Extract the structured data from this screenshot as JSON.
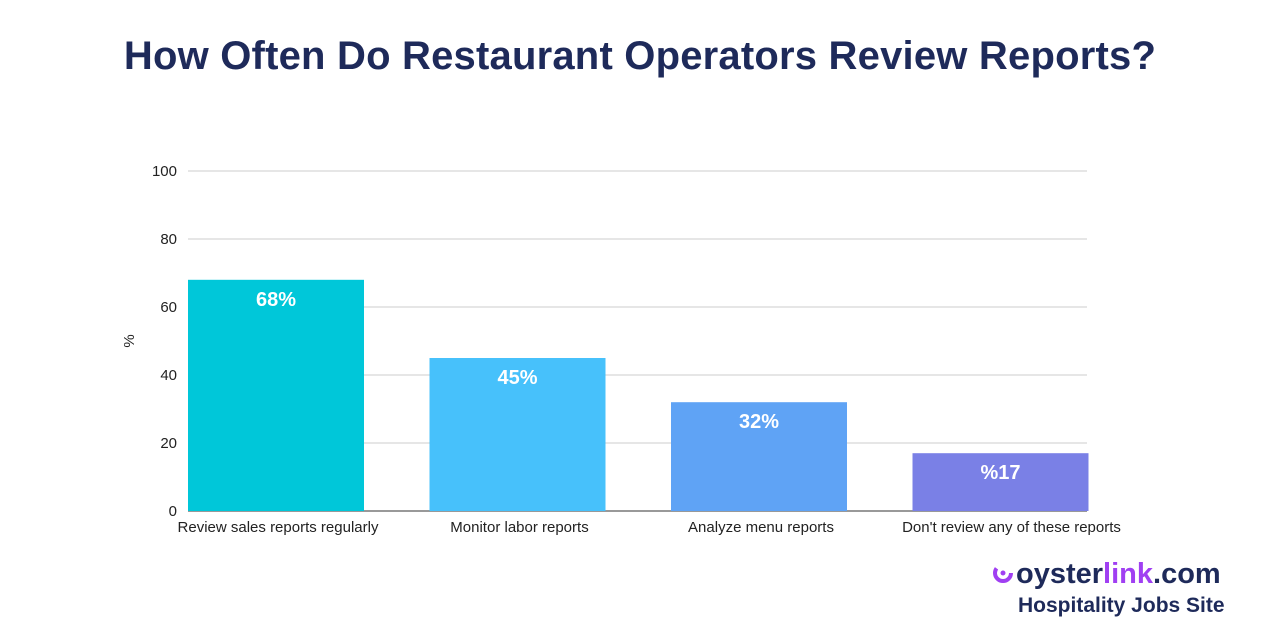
{
  "title": "How Often Do Restaurant Operators Review Reports?",
  "chart_data": {
    "type": "bar",
    "categories": [
      "Review sales reports regularly",
      "Monitor labor reports",
      "Analyze menu reports",
      "Don't review any of these reports"
    ],
    "values": [
      68,
      45,
      32,
      17
    ],
    "data_labels": [
      "68%",
      "45%",
      "32%",
      "%17"
    ],
    "colors": [
      "#00c7d9",
      "#47c1fb",
      "#5fa3f5",
      "#7a80e6"
    ],
    "xlabel": "",
    "ylabel": "%",
    "ylim": [
      0,
      100
    ],
    "yticks": [
      "0",
      "20",
      "40",
      "60",
      "80",
      "100"
    ],
    "grid": true,
    "legend": "none"
  },
  "logo": {
    "part1": "oyster",
    "part2": "link",
    "part3": ".com",
    "tagline": "Hospitality Jobs Site"
  }
}
